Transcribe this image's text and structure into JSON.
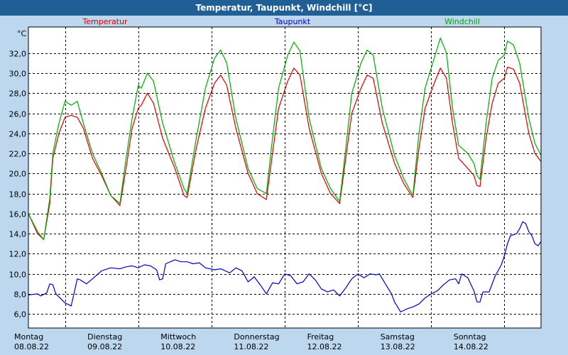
{
  "window": {
    "title": "Temperatur, Taupunkt, Windchill [°C]"
  },
  "colors": {
    "background": "#bdd7ee",
    "titlebar": "#1f5f96",
    "temperature": "#dd0000",
    "dewpoint": "#0000cc",
    "windchill": "#00aa00"
  },
  "chart_data": {
    "type": "line",
    "title": "Temperatur, Taupunkt, Windchill [°C]",
    "ylabel": "°C",
    "ylim": [
      4.6,
      34.6
    ],
    "yticks": [
      6.0,
      8.0,
      10.0,
      12.0,
      14.0,
      16.0,
      18.0,
      20.0,
      22.0,
      24.0,
      26.0,
      28.0,
      30.0,
      32.0
    ],
    "ytick_labels": [
      "6,0",
      "8,0",
      "10,0",
      "12,0",
      "14,0",
      "16,0",
      "18,0",
      "20,0",
      "22,0",
      "24,0",
      "26,0",
      "28,0",
      "30,0",
      "32,0"
    ],
    "xlim": [
      "2022-08-08T00:00",
      "2022-08-15T00:00"
    ],
    "grid": true,
    "legend": "top",
    "x_ticks": [
      {
        "x": "2022-08-08",
        "day": "Montag",
        "date": "08.08.22"
      },
      {
        "x": "2022-08-09",
        "day": "Dienstag",
        "date": "09.08.22"
      },
      {
        "x": "2022-08-10",
        "day": "Mittwoch",
        "date": "10.08.22"
      },
      {
        "x": "2022-08-11",
        "day": "Donnerstag",
        "date": "11.08.22"
      },
      {
        "x": "2022-08-12",
        "day": "Freitag",
        "date": "12.08.22"
      },
      {
        "x": "2022-08-13",
        "day": "Samstag",
        "date": "13.08.22"
      },
      {
        "x": "2022-08-14",
        "day": "Sonntag",
        "date": "14.08.22"
      }
    ],
    "series": [
      {
        "name": "Temperatur",
        "color": "#dd0000",
        "points": [
          [
            "2022-08-08T00:00",
            16.0
          ],
          [
            "2022-08-08T03:00",
            14.0
          ],
          [
            "2022-08-08T05:00",
            13.4
          ],
          [
            "2022-08-08T07:00",
            17.0
          ],
          [
            "2022-08-08T08:00",
            21.5
          ],
          [
            "2022-08-08T10:00",
            24.0
          ],
          [
            "2022-08-08T12:00",
            25.6
          ],
          [
            "2022-08-08T14:00",
            25.8
          ],
          [
            "2022-08-08T16:00",
            25.6
          ],
          [
            "2022-08-08T18:00",
            24.5
          ],
          [
            "2022-08-08T21:00",
            21.5
          ],
          [
            "2022-08-09T00:00",
            19.8
          ],
          [
            "2022-08-09T03:00",
            17.8
          ],
          [
            "2022-08-09T06:00",
            16.8
          ],
          [
            "2022-08-09T08:00",
            20.5
          ],
          [
            "2022-08-09T10:00",
            24.5
          ],
          [
            "2022-08-09T12:00",
            26.5
          ],
          [
            "2022-08-09T13:00",
            26.8
          ],
          [
            "2022-08-09T15:00",
            28.0
          ],
          [
            "2022-08-09T17:00",
            27.0
          ],
          [
            "2022-08-09T20:00",
            23.5
          ],
          [
            "2022-08-10T00:00",
            20.5
          ],
          [
            "2022-08-10T03:00",
            17.8
          ],
          [
            "2022-08-10T04:00",
            17.6
          ],
          [
            "2022-08-10T07:00",
            22.5
          ],
          [
            "2022-08-10T10:00",
            26.5
          ],
          [
            "2022-08-10T13:00",
            29.0
          ],
          [
            "2022-08-10T15:00",
            29.8
          ],
          [
            "2022-08-10T17:00",
            28.8
          ],
          [
            "2022-08-10T20:00",
            24.5
          ],
          [
            "2022-08-11T00:00",
            20.0
          ],
          [
            "2022-08-11T03:00",
            18.0
          ],
          [
            "2022-08-11T06:00",
            17.4
          ],
          [
            "2022-08-11T08:00",
            22.0
          ],
          [
            "2022-08-11T10:00",
            26.5
          ],
          [
            "2022-08-11T13:00",
            29.2
          ],
          [
            "2022-08-11T15:00",
            30.5
          ],
          [
            "2022-08-11T17:00",
            29.8
          ],
          [
            "2022-08-11T20:00",
            24.5
          ],
          [
            "2022-08-12T00:00",
            20.0
          ],
          [
            "2022-08-12T03:00",
            18.0
          ],
          [
            "2022-08-12T06:00",
            17.0
          ],
          [
            "2022-08-12T08:00",
            21.5
          ],
          [
            "2022-08-12T10:00",
            26.0
          ],
          [
            "2022-08-12T13:00",
            28.5
          ],
          [
            "2022-08-12T15:00",
            29.8
          ],
          [
            "2022-08-12T17:00",
            29.5
          ],
          [
            "2022-08-12T20:00",
            25.0
          ],
          [
            "2022-08-13T00:00",
            21.0
          ],
          [
            "2022-08-13T03:00",
            19.0
          ],
          [
            "2022-08-13T06:00",
            17.6
          ],
          [
            "2022-08-13T08:00",
            22.5
          ],
          [
            "2022-08-13T10:00",
            26.5
          ],
          [
            "2022-08-13T13:00",
            29.0
          ],
          [
            "2022-08-13T15:00",
            30.5
          ],
          [
            "2022-08-13T17:00",
            29.5
          ],
          [
            "2022-08-13T19:00",
            25.0
          ],
          [
            "2022-08-13T21:00",
            21.5
          ],
          [
            "2022-08-14T00:00",
            20.5
          ],
          [
            "2022-08-14T02:00",
            19.8
          ],
          [
            "2022-08-14T03:00",
            18.8
          ],
          [
            "2022-08-14T04:00",
            18.7
          ],
          [
            "2022-08-14T06:00",
            23.5
          ],
          [
            "2022-08-14T08:00",
            27.0
          ],
          [
            "2022-08-14T10:00",
            29.0
          ],
          [
            "2022-08-14T12:00",
            29.5
          ],
          [
            "2022-08-14T13:00",
            30.6
          ],
          [
            "2022-08-14T15:00",
            30.4
          ],
          [
            "2022-08-14T17:00",
            29.0
          ],
          [
            "2022-08-14T20:00",
            24.0
          ],
          [
            "2022-08-14T22:00",
            22.0
          ],
          [
            "2022-08-14T23:59",
            21.2
          ]
        ]
      },
      {
        "name": "Taupunkt",
        "color": "#0000cc",
        "points": [
          [
            "2022-08-08T00:00",
            7.9
          ],
          [
            "2022-08-08T03:00",
            8.0
          ],
          [
            "2022-08-08T04:00",
            7.8
          ],
          [
            "2022-08-08T06:00",
            8.1
          ],
          [
            "2022-08-08T07:00",
            9.0
          ],
          [
            "2022-08-08T08:00",
            8.9
          ],
          [
            "2022-08-08T09:00",
            8.0
          ],
          [
            "2022-08-08T12:00",
            7.1
          ],
          [
            "2022-08-08T14:00",
            6.8
          ],
          [
            "2022-08-08T15:00",
            8.1
          ],
          [
            "2022-08-08T16:00",
            9.5
          ],
          [
            "2022-08-08T17:00",
            9.4
          ],
          [
            "2022-08-08T19:00",
            9.0
          ],
          [
            "2022-08-08T21:00",
            9.5
          ],
          [
            "2022-08-09T00:00",
            10.3
          ],
          [
            "2022-08-09T03:00",
            10.6
          ],
          [
            "2022-08-09T06:00",
            10.5
          ],
          [
            "2022-08-09T08:00",
            10.7
          ],
          [
            "2022-08-09T10:00",
            10.8
          ],
          [
            "2022-08-09T12:00",
            10.6
          ],
          [
            "2022-08-09T14:00",
            10.9
          ],
          [
            "2022-08-09T16:00",
            10.8
          ],
          [
            "2022-08-09T18:00",
            10.4
          ],
          [
            "2022-08-09T19:00",
            9.4
          ],
          [
            "2022-08-09T20:00",
            9.5
          ],
          [
            "2022-08-09T21:00",
            11.0
          ],
          [
            "2022-08-10T00:00",
            11.4
          ],
          [
            "2022-08-10T02:00",
            11.2
          ],
          [
            "2022-08-10T04:00",
            11.2
          ],
          [
            "2022-08-10T06:00",
            11.0
          ],
          [
            "2022-08-10T08:00",
            11.1
          ],
          [
            "2022-08-10T10:00",
            10.6
          ],
          [
            "2022-08-10T13:00",
            10.4
          ],
          [
            "2022-08-10T15:00",
            10.5
          ],
          [
            "2022-08-10T18:00",
            10.1
          ],
          [
            "2022-08-10T20:00",
            10.6
          ],
          [
            "2022-08-10T22:00",
            10.3
          ],
          [
            "2022-08-11T00:00",
            9.2
          ],
          [
            "2022-08-11T02:00",
            9.7
          ],
          [
            "2022-08-11T04:00",
            8.9
          ],
          [
            "2022-08-11T06:00",
            8.0
          ],
          [
            "2022-08-11T08:00",
            9.1
          ],
          [
            "2022-08-11T10:00",
            9.0
          ],
          [
            "2022-08-11T12:00",
            10.0
          ],
          [
            "2022-08-11T14:00",
            9.8
          ],
          [
            "2022-08-11T16:00",
            9.0
          ],
          [
            "2022-08-11T18:00",
            9.2
          ],
          [
            "2022-08-11T20:00",
            10.0
          ],
          [
            "2022-08-11T22:00",
            9.4
          ],
          [
            "2022-08-12T00:00",
            8.5
          ],
          [
            "2022-08-12T02:00",
            8.2
          ],
          [
            "2022-08-12T04:00",
            8.4
          ],
          [
            "2022-08-12T06:00",
            7.8
          ],
          [
            "2022-08-12T08:00",
            8.6
          ],
          [
            "2022-08-12T10:00",
            9.5
          ],
          [
            "2022-08-12T12:00",
            10.0
          ],
          [
            "2022-08-12T14:00",
            9.6
          ],
          [
            "2022-08-12T16:00",
            10.0
          ],
          [
            "2022-08-12T18:00",
            9.9
          ],
          [
            "2022-08-12T19:00",
            10.0
          ],
          [
            "2022-08-12T21:00",
            9.0
          ],
          [
            "2022-08-12T23:00",
            8.0
          ],
          [
            "2022-08-13T00:00",
            7.2
          ],
          [
            "2022-08-13T02:00",
            6.2
          ],
          [
            "2022-08-13T04:00",
            6.5
          ],
          [
            "2022-08-13T06:00",
            6.7
          ],
          [
            "2022-08-13T08:00",
            7.0
          ],
          [
            "2022-08-13T10:00",
            7.6
          ],
          [
            "2022-08-13T12:00",
            8.0
          ],
          [
            "2022-08-13T14:00",
            8.3
          ],
          [
            "2022-08-13T16:00",
            8.9
          ],
          [
            "2022-08-13T18:00",
            9.4
          ],
          [
            "2022-08-13T20:00",
            9.5
          ],
          [
            "2022-08-13T21:00",
            9.0
          ],
          [
            "2022-08-13T22:00",
            10.0
          ],
          [
            "2022-08-14T00:00",
            9.6
          ],
          [
            "2022-08-14T02:00",
            8.3
          ],
          [
            "2022-08-14T03:00",
            7.2
          ],
          [
            "2022-08-14T04:00",
            7.2
          ],
          [
            "2022-08-14T05:00",
            8.2
          ],
          [
            "2022-08-14T07:00",
            8.2
          ],
          [
            "2022-08-14T09:00",
            9.8
          ],
          [
            "2022-08-14T11:00",
            10.9
          ],
          [
            "2022-08-14T12:00",
            11.8
          ],
          [
            "2022-08-14T13:00",
            13.0
          ],
          [
            "2022-08-14T14:00",
            13.8
          ],
          [
            "2022-08-14T16:00",
            14.0
          ],
          [
            "2022-08-14T17:00",
            14.5
          ],
          [
            "2022-08-14T18:00",
            15.2
          ],
          [
            "2022-08-14T19:00",
            15.0
          ],
          [
            "2022-08-14T20:00",
            14.2
          ],
          [
            "2022-08-14T21:00",
            13.8
          ],
          [
            "2022-08-14T22:00",
            13.0
          ],
          [
            "2022-08-14T23:00",
            12.8
          ],
          [
            "2022-08-14T23:59",
            13.2
          ]
        ]
      },
      {
        "name": "Windchill",
        "color": "#00aa00",
        "points": [
          [
            "2022-08-08T00:00",
            16.0
          ],
          [
            "2022-08-08T03:00",
            14.2
          ],
          [
            "2022-08-08T05:00",
            13.4
          ],
          [
            "2022-08-08T07:00",
            17.5
          ],
          [
            "2022-08-08T08:00",
            22.0
          ],
          [
            "2022-08-08T10:00",
            25.0
          ],
          [
            "2022-08-08T12:00",
            27.2
          ],
          [
            "2022-08-08T14:00",
            26.8
          ],
          [
            "2022-08-08T16:00",
            27.2
          ],
          [
            "2022-08-08T18:00",
            25.0
          ],
          [
            "2022-08-08T21:00",
            22.0
          ],
          [
            "2022-08-09T00:00",
            20.0
          ],
          [
            "2022-08-09T03:00",
            17.8
          ],
          [
            "2022-08-09T06:00",
            17.0
          ],
          [
            "2022-08-09T08:00",
            21.5
          ],
          [
            "2022-08-09T10:00",
            25.5
          ],
          [
            "2022-08-09T12:00",
            28.8
          ],
          [
            "2022-08-09T13:00",
            28.5
          ],
          [
            "2022-08-09T15:00",
            30.0
          ],
          [
            "2022-08-09T17:00",
            29.2
          ],
          [
            "2022-08-09T20:00",
            25.0
          ],
          [
            "2022-08-10T00:00",
            21.0
          ],
          [
            "2022-08-10T03:00",
            18.5
          ],
          [
            "2022-08-10T04:00",
            18.0
          ],
          [
            "2022-08-10T07:00",
            23.5
          ],
          [
            "2022-08-10T10:00",
            28.5
          ],
          [
            "2022-08-10T13:00",
            31.5
          ],
          [
            "2022-08-10T15:00",
            32.3
          ],
          [
            "2022-08-10T17:00",
            31.0
          ],
          [
            "2022-08-10T20:00",
            25.5
          ],
          [
            "2022-08-11T00:00",
            20.5
          ],
          [
            "2022-08-11T03:00",
            18.5
          ],
          [
            "2022-08-11T06:00",
            18.0
          ],
          [
            "2022-08-11T08:00",
            23.5
          ],
          [
            "2022-08-11T10:00",
            28.5
          ],
          [
            "2022-08-11T13:00",
            31.8
          ],
          [
            "2022-08-11T15:00",
            33.1
          ],
          [
            "2022-08-11T17:00",
            32.2
          ],
          [
            "2022-08-11T20:00",
            25.5
          ],
          [
            "2022-08-12T00:00",
            20.5
          ],
          [
            "2022-08-12T03:00",
            18.5
          ],
          [
            "2022-08-12T06:00",
            17.2
          ],
          [
            "2022-08-12T08:00",
            22.5
          ],
          [
            "2022-08-12T10:00",
            28.0
          ],
          [
            "2022-08-12T13:00",
            31.0
          ],
          [
            "2022-08-12T15:00",
            32.3
          ],
          [
            "2022-08-12T17:00",
            31.8
          ],
          [
            "2022-08-12T20:00",
            26.5
          ],
          [
            "2022-08-13T00:00",
            21.8
          ],
          [
            "2022-08-13T03:00",
            19.5
          ],
          [
            "2022-08-13T06:00",
            17.8
          ],
          [
            "2022-08-13T08:00",
            24.0
          ],
          [
            "2022-08-13T10:00",
            28.5
          ],
          [
            "2022-08-13T13:00",
            31.5
          ],
          [
            "2022-08-13T15:00",
            33.5
          ],
          [
            "2022-08-13T17:00",
            32.0
          ],
          [
            "2022-08-13T19:00",
            26.5
          ],
          [
            "2022-08-13T21:00",
            22.8
          ],
          [
            "2022-08-14T00:00",
            22.0
          ],
          [
            "2022-08-14T02:00",
            21.0
          ],
          [
            "2022-08-14T03:00",
            19.8
          ],
          [
            "2022-08-14T04:00",
            19.4
          ],
          [
            "2022-08-14T06:00",
            25.0
          ],
          [
            "2022-08-14T08:00",
            29.5
          ],
          [
            "2022-08-14T10:00",
            31.3
          ],
          [
            "2022-08-14T12:00",
            31.8
          ],
          [
            "2022-08-14T13:00",
            33.2
          ],
          [
            "2022-08-14T15:00",
            32.8
          ],
          [
            "2022-08-14T17:00",
            31.0
          ],
          [
            "2022-08-14T20:00",
            25.5
          ],
          [
            "2022-08-14T22:00",
            23.0
          ],
          [
            "2022-08-14T23:59",
            21.8
          ]
        ]
      }
    ]
  }
}
